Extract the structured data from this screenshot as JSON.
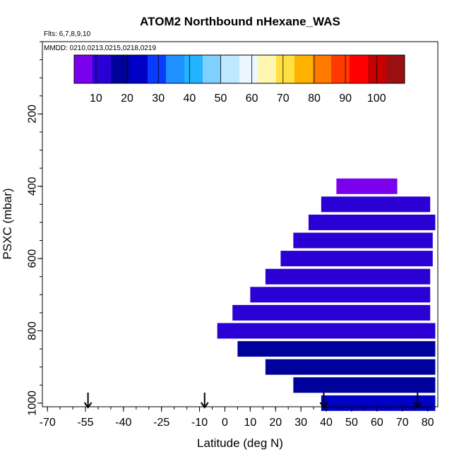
{
  "chart_data": {
    "type": "heatmap",
    "title": "ATOM2 Northbound nHexane_WAS",
    "notes": {
      "flights": "Flts: 6,7,8,9,10",
      "dates": "MMDD: 0210,0213,0215,0218,0219"
    },
    "xlabel": "Latitude (deg N)",
    "ylabel": "PSXC (mbar)",
    "xlim": [
      -72,
      84
    ],
    "ylim": [
      1010,
      0
    ],
    "x_ticks": [
      -70,
      -55,
      -40,
      -25,
      -10,
      0,
      10,
      20,
      30,
      40,
      50,
      60,
      70,
      80
    ],
    "y_ticks": [
      200,
      400,
      600,
      800,
      1000
    ],
    "colorbar": {
      "range": [
        3,
        109
      ],
      "ticks": [
        10,
        20,
        30,
        40,
        50,
        60,
        70,
        80,
        90,
        100
      ],
      "colors": [
        "#7a00ee",
        "#2a00d4",
        "#00009a",
        "#0000c6",
        "#0a3cff",
        "#1e90ff",
        "#22b2ff",
        "#7fd0ff",
        "#bfe8ff",
        "#eaf7ff",
        "#fff6b0",
        "#ffe040",
        "#ffb300",
        "#ff7a00",
        "#ff3a00",
        "#ff0000",
        "#c80000",
        "#9a1010"
      ]
    },
    "arrows_lat": [
      -54,
      -8,
      39,
      76
    ],
    "bands": [
      {
        "p": 400,
        "lat_min": 44,
        "lat_max": 68,
        "value": 8
      },
      {
        "p": 450,
        "lat_min": 38,
        "lat_max": 81,
        "value": 9
      },
      {
        "p": 500,
        "lat_min": 33,
        "lat_max": 83,
        "value": 10
      },
      {
        "p": 550,
        "lat_min": 27,
        "lat_max": 82,
        "value": 10
      },
      {
        "p": 600,
        "lat_min": 22,
        "lat_max": 82,
        "value": 9
      },
      {
        "p": 650,
        "lat_min": 16,
        "lat_max": 81,
        "value": 9
      },
      {
        "p": 700,
        "lat_min": 10,
        "lat_max": 81,
        "value": 9
      },
      {
        "p": 750,
        "lat_min": 3,
        "lat_max": 81,
        "value": 10
      },
      {
        "p": 800,
        "lat_min": -3,
        "lat_max": 83,
        "value": 12
      },
      {
        "p": 850,
        "lat_min": 5,
        "lat_max": 83,
        "value": 15
      },
      {
        "p": 900,
        "lat_min": 16,
        "lat_max": 83,
        "value": 18
      },
      {
        "p": 950,
        "lat_min": 27,
        "lat_max": 83,
        "value": 20
      },
      {
        "p": 1000,
        "lat_min": 38,
        "lat_max": 83,
        "value": 22
      }
    ]
  }
}
